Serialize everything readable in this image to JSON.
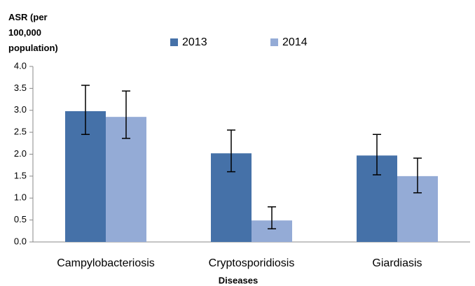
{
  "chart_data": {
    "type": "bar",
    "y_label": "ASR (per 100,000 population)",
    "x_label": "Diseases",
    "categories": [
      "Campylobacteriosis",
      "Cryptosporidiosis",
      "Giardiasis"
    ],
    "series": [
      {
        "name": "2013",
        "color": "#4571a8",
        "values": [
          2.98,
          2.02,
          1.97
        ],
        "lower": [
          2.45,
          1.6,
          1.53
        ],
        "upper": [
          3.57,
          2.55,
          2.45
        ]
      },
      {
        "name": "2014",
        "color": "#94abd6",
        "values": [
          2.85,
          0.49,
          1.5
        ],
        "lower": [
          2.36,
          0.3,
          1.12
        ],
        "upper": [
          3.44,
          0.8,
          1.91
        ]
      }
    ],
    "ylim": [
      0,
      4
    ],
    "yticks": [
      {
        "value": 0,
        "label": "0.0"
      },
      0.5,
      {
        "value": 1,
        "label": "1.0"
      },
      1.5,
      {
        "value": 2,
        "label": "2.0"
      },
      2.5,
      {
        "value": 3,
        "label": "3.0"
      },
      3.5,
      {
        "value": 4,
        "label": "4.0"
      }
    ],
    "legend": "top"
  }
}
